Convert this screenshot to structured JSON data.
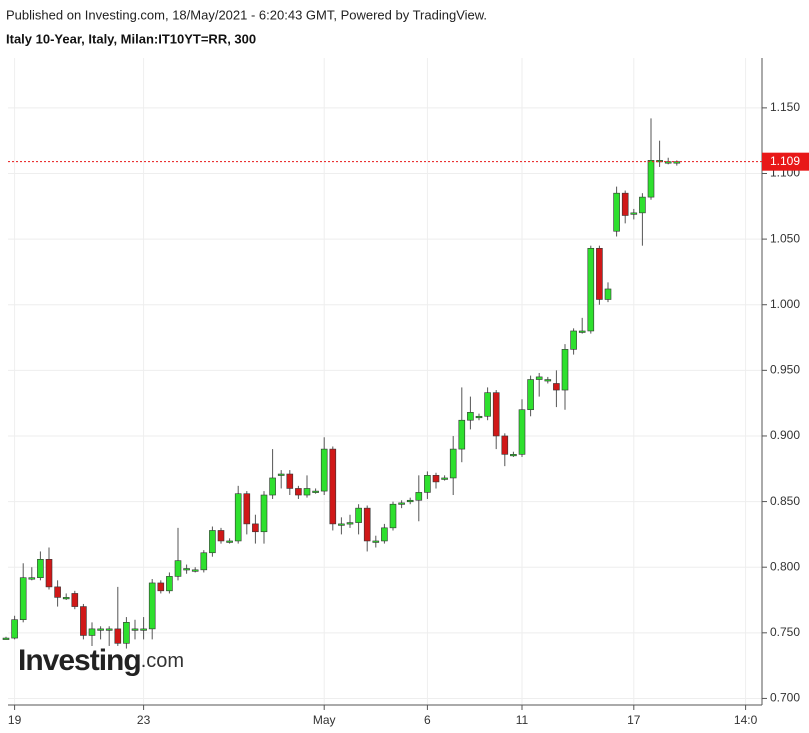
{
  "chart_data": {
    "type": "candlestick",
    "published": "Published on Investing.com, 18/May/2021 - 6:20:43 GMT, Powered by TradingView.",
    "title": "Italy 10-Year, Italy, Milan:IT10YT=RR, 300",
    "watermark_brand": "Investing",
    "watermark_suffix": ".com",
    "categories": [
      null,
      "19",
      null,
      null,
      null,
      null,
      null,
      null,
      null,
      null,
      null,
      null,
      null,
      null,
      null,
      null,
      "23",
      null,
      null,
      null,
      null,
      null,
      null,
      null,
      null,
      null,
      null,
      null,
      null,
      null,
      null,
      null,
      null,
      null,
      null,
      null,
      null,
      "May",
      null,
      null,
      null,
      null,
      null,
      null,
      null,
      null,
      null,
      null,
      null,
      "6",
      null,
      null,
      null,
      null,
      null,
      null,
      null,
      null,
      null,
      null,
      "11",
      null,
      null,
      null,
      null,
      null,
      null,
      null,
      null,
      null,
      null,
      null,
      null,
      "17",
      null,
      null,
      null,
      null,
      null,
      null,
      null,
      null,
      null,
      null,
      null,
      null,
      "14:0"
    ],
    "open": [
      0.746,
      0.746,
      0.76,
      0.792,
      0.792,
      0.806,
      0.785,
      0.777,
      0.78,
      0.77,
      0.748,
      0.753,
      0.753,
      0.753,
      0.742,
      0.753,
      0.753,
      0.753,
      0.788,
      0.782,
      0.793,
      0.799,
      0.798,
      0.798,
      0.811,
      0.828,
      0.82,
      0.82,
      0.856,
      0.833,
      0.827,
      0.855,
      0.871,
      0.871,
      0.86,
      0.855,
      0.858,
      0.858,
      0.89,
      0.833,
      0.834,
      0.834,
      0.845,
      0.82,
      0.82,
      0.83,
      0.849,
      0.851,
      0.851,
      0.857,
      0.87,
      0.868,
      0.868,
      0.89,
      0.912,
      0.915,
      0.915,
      0.933,
      0.9,
      0.886,
      0.886,
      0.92,
      0.943,
      0.943,
      0.94,
      0.935,
      0.966,
      0.98,
      0.98,
      1.043,
      1.004,
      1.056,
      1.085,
      1.07,
      1.07,
      1.082,
      1.11,
      1.109,
      1.109,
      null,
      null,
      null,
      null,
      null,
      null,
      null,
      null
    ],
    "high": [
      0.747,
      0.763,
      0.803,
      0.8,
      0.812,
      0.815,
      0.79,
      0.78,
      0.782,
      0.772,
      0.758,
      0.755,
      0.755,
      0.785,
      0.762,
      0.76,
      0.762,
      0.791,
      0.79,
      0.796,
      0.83,
      0.802,
      0.8,
      0.813,
      0.831,
      0.83,
      0.822,
      0.862,
      0.858,
      0.84,
      0.858,
      0.89,
      0.874,
      0.874,
      0.862,
      0.87,
      0.86,
      0.899,
      0.892,
      0.838,
      0.84,
      0.848,
      0.847,
      0.824,
      0.833,
      0.85,
      0.851,
      0.853,
      0.87,
      0.873,
      0.872,
      0.87,
      0.9,
      0.937,
      0.93,
      0.917,
      0.937,
      0.935,
      0.902,
      0.888,
      0.928,
      0.946,
      0.948,
      0.945,
      0.95,
      0.97,
      0.982,
      0.99,
      1.045,
      1.045,
      1.017,
      1.09,
      1.087,
      1.073,
      1.085,
      1.142,
      1.125,
      1.112,
      1.11,
      null,
      null,
      null,
      null,
      null,
      null,
      null,
      null
    ],
    "low": [
      0.745,
      0.745,
      0.758,
      0.79,
      0.79,
      0.783,
      0.77,
      0.775,
      0.768,
      0.745,
      0.74,
      0.745,
      0.74,
      0.74,
      0.738,
      0.745,
      0.745,
      0.745,
      0.78,
      0.78,
      0.79,
      0.795,
      0.796,
      0.796,
      0.808,
      0.818,
      0.818,
      0.818,
      0.825,
      0.818,
      0.818,
      0.852,
      0.86,
      0.855,
      0.852,
      0.853,
      0.856,
      0.855,
      0.828,
      0.825,
      0.83,
      0.825,
      0.812,
      0.815,
      0.818,
      0.828,
      0.845,
      0.848,
      0.835,
      0.852,
      0.86,
      0.866,
      0.855,
      0.88,
      0.905,
      0.912,
      0.912,
      0.89,
      0.877,
      0.884,
      0.884,
      0.915,
      0.93,
      0.94,
      0.922,
      0.92,
      0.962,
      0.978,
      0.978,
      1.0,
      1.002,
      1.052,
      1.062,
      1.065,
      1.045,
      1.08,
      1.105,
      1.107,
      1.106,
      null,
      null,
      null,
      null,
      null,
      null,
      null,
      null
    ],
    "close": [
      0.746,
      0.76,
      0.792,
      0.792,
      0.806,
      0.785,
      0.777,
      0.777,
      0.77,
      0.748,
      0.753,
      0.753,
      0.753,
      0.742,
      0.758,
      0.753,
      0.753,
      0.788,
      0.782,
      0.793,
      0.805,
      0.799,
      0.798,
      0.811,
      0.828,
      0.82,
      0.82,
      0.856,
      0.833,
      0.827,
      0.855,
      0.868,
      0.871,
      0.86,
      0.855,
      0.86,
      0.858,
      0.89,
      0.833,
      0.833,
      0.834,
      0.845,
      0.82,
      0.82,
      0.83,
      0.848,
      0.849,
      0.851,
      0.857,
      0.87,
      0.865,
      0.868,
      0.89,
      0.912,
      0.918,
      0.915,
      0.933,
      0.9,
      0.886,
      0.886,
      0.92,
      0.943,
      0.945,
      0.943,
      0.935,
      0.966,
      0.98,
      0.98,
      1.043,
      1.004,
      1.012,
      1.085,
      1.068,
      1.07,
      1.082,
      1.11,
      1.11,
      1.109,
      1.109,
      null,
      null,
      null,
      null,
      null,
      null,
      null,
      null
    ],
    "up_color": "#2ee02e",
    "down_color": "#d01818",
    "last_value": 1.109,
    "last_color": "#e81818",
    "ylim": [
      0.695,
      1.188
    ],
    "yticks": [
      {
        "value": 0.7,
        "label": "0.700"
      },
      {
        "value": 0.75,
        "label": "0.750"
      },
      {
        "value": 0.8,
        "label": "0.800"
      },
      {
        "value": 0.85,
        "label": "0.850"
      },
      {
        "value": 0.9,
        "label": "0.900"
      },
      {
        "value": 0.95,
        "label": "0.950"
      },
      {
        "value": 1.0,
        "label": "1.000"
      },
      {
        "value": 1.05,
        "label": "1.050"
      },
      {
        "value": 1.1,
        "label": "1.100"
      },
      {
        "value": 1.15,
        "label": "1.150"
      }
    ],
    "grid": true
  }
}
